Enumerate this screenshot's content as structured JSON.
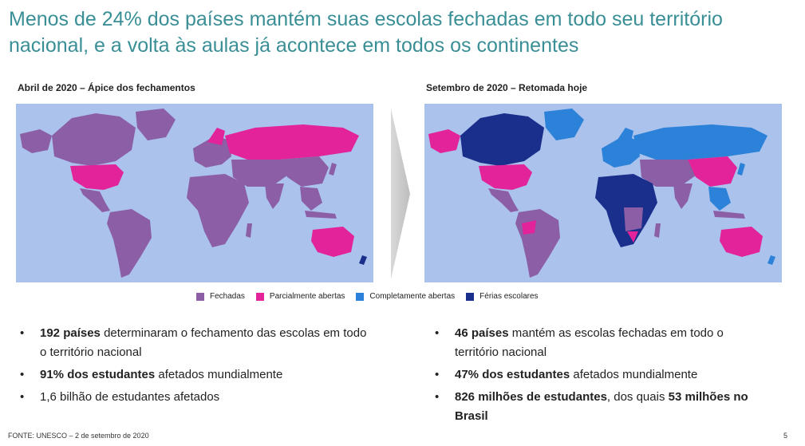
{
  "title": "Menos de 24% dos países mantém suas escolas fechadas em todo seu território nacional, e a volta às aulas já acontece em todos os continentes",
  "left": {
    "heading": "Abril de 2020 – Ápice dos fechamentos",
    "bullets": [
      {
        "bold": "192 países",
        "rest": " determinaram o fechamento das escolas em todo o território nacional"
      },
      {
        "bold": "91% dos estudantes",
        "rest": " afetados mundialmente"
      },
      {
        "bold": "",
        "rest": "1,6 bilhão de estudantes afetados"
      }
    ]
  },
  "right": {
    "heading": "Setembro de 2020 – Retomada hoje",
    "bullets": [
      {
        "bold": "46 países",
        "rest": " mantém as escolas fechadas em todo o território nacional"
      },
      {
        "bold": "47% dos estudantes",
        "rest": " afetados mundialmente"
      },
      {
        "bold": "826 milhões de estudantes",
        "rest": ", dos quais ",
        "bold2": "53 milhões no Brasil"
      }
    ]
  },
  "legend": [
    {
      "label": "Fechadas",
      "color": "#8b5ea6"
    },
    {
      "label": "Parcialmente abertas",
      "color": "#e2239a"
    },
    {
      "label": "Completamente abertas",
      "color": "#2c82d8"
    },
    {
      "label": "Férias escolares",
      "color": "#1a2e8c"
    }
  ],
  "colors": {
    "ocean": "#aac2ec",
    "title": "#3a8f96"
  },
  "footer": "FONTE: UNESCO – 2 de setembro de 2020",
  "page_number": "5"
}
